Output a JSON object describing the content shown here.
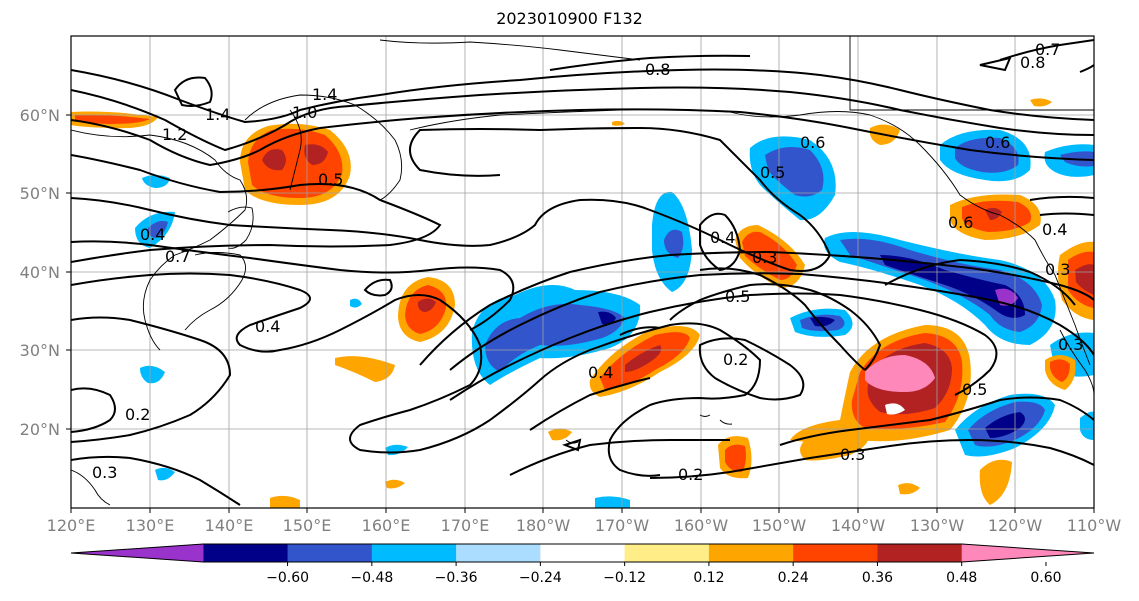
{
  "title": "2023010900 F132",
  "map": {
    "lat_labels": [
      "60°N",
      "50°N",
      "40°N",
      "30°N",
      "20°N"
    ],
    "lon_labels": [
      "120°E",
      "130°E",
      "140°E",
      "150°E",
      "160°E",
      "170°E",
      "180°W",
      "170°W",
      "160°W",
      "150°W",
      "140°W",
      "130°W",
      "120°W",
      "110°W"
    ],
    "contour_labels": [
      "0.8",
      "0.7",
      "0.8",
      "1.4",
      "1.0",
      "1.4",
      "1.2",
      "0.5",
      "0.6",
      "0.6",
      "0.5",
      "0.6",
      "0.4",
      "0.7",
      "0.4",
      "0.3",
      "0.4",
      "0.3",
      "0.5",
      "0.2",
      "0.4",
      "0.5",
      "0.3",
      "0.3",
      "0.2",
      "0.2",
      "0.3",
      "0.4"
    ]
  },
  "colorbar": {
    "tick_labels": [
      "−0.60",
      "−0.48",
      "−0.36",
      "−0.24",
      "−0.12",
      "0.12",
      "0.24",
      "0.36",
      "0.48",
      "0.60"
    ],
    "colors": [
      "#9933cc",
      "#000088",
      "#3355cc",
      "#00bbff",
      "#aaddff",
      "#ffffff",
      "#ffee88",
      "#ffa500",
      "#ff4400",
      "#b22222",
      "#ff88bb"
    ]
  }
}
